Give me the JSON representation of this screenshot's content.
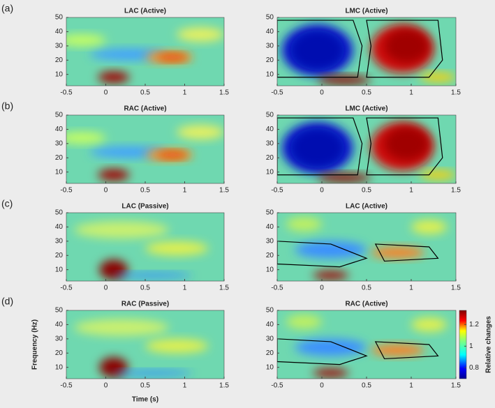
{
  "panels": [
    {
      "label": "(a)",
      "plots": [
        {
          "title": "LAC (Active)"
        },
        {
          "title": "LMC (Active)"
        }
      ]
    },
    {
      "label": "(b)",
      "plots": [
        {
          "title": "RAC (Active)"
        },
        {
          "title": "LMC (Active)"
        }
      ]
    },
    {
      "label": "(c)",
      "plots": [
        {
          "title": "LAC (Passive)"
        },
        {
          "title": "LAC (Active)"
        }
      ]
    },
    {
      "label": "(d)",
      "plots": [
        {
          "title": "RAC (Passive)"
        },
        {
          "title": "RAC (Active)"
        }
      ]
    }
  ],
  "axes": {
    "xlim": [
      -0.5,
      1.5
    ],
    "xticks": [
      -0.5,
      0,
      0.5,
      1,
      1.5
    ],
    "ylim": [
      2,
      50
    ],
    "yticks": [
      10,
      20,
      30,
      40,
      50
    ],
    "xlabel": "Time (s)",
    "ylabel": "Frequency (Hz)"
  },
  "colorbar": {
    "label": "Relative changes",
    "lim": [
      0.7,
      1.33
    ],
    "ticks": [
      0.8,
      1,
      1.2
    ]
  }
}
